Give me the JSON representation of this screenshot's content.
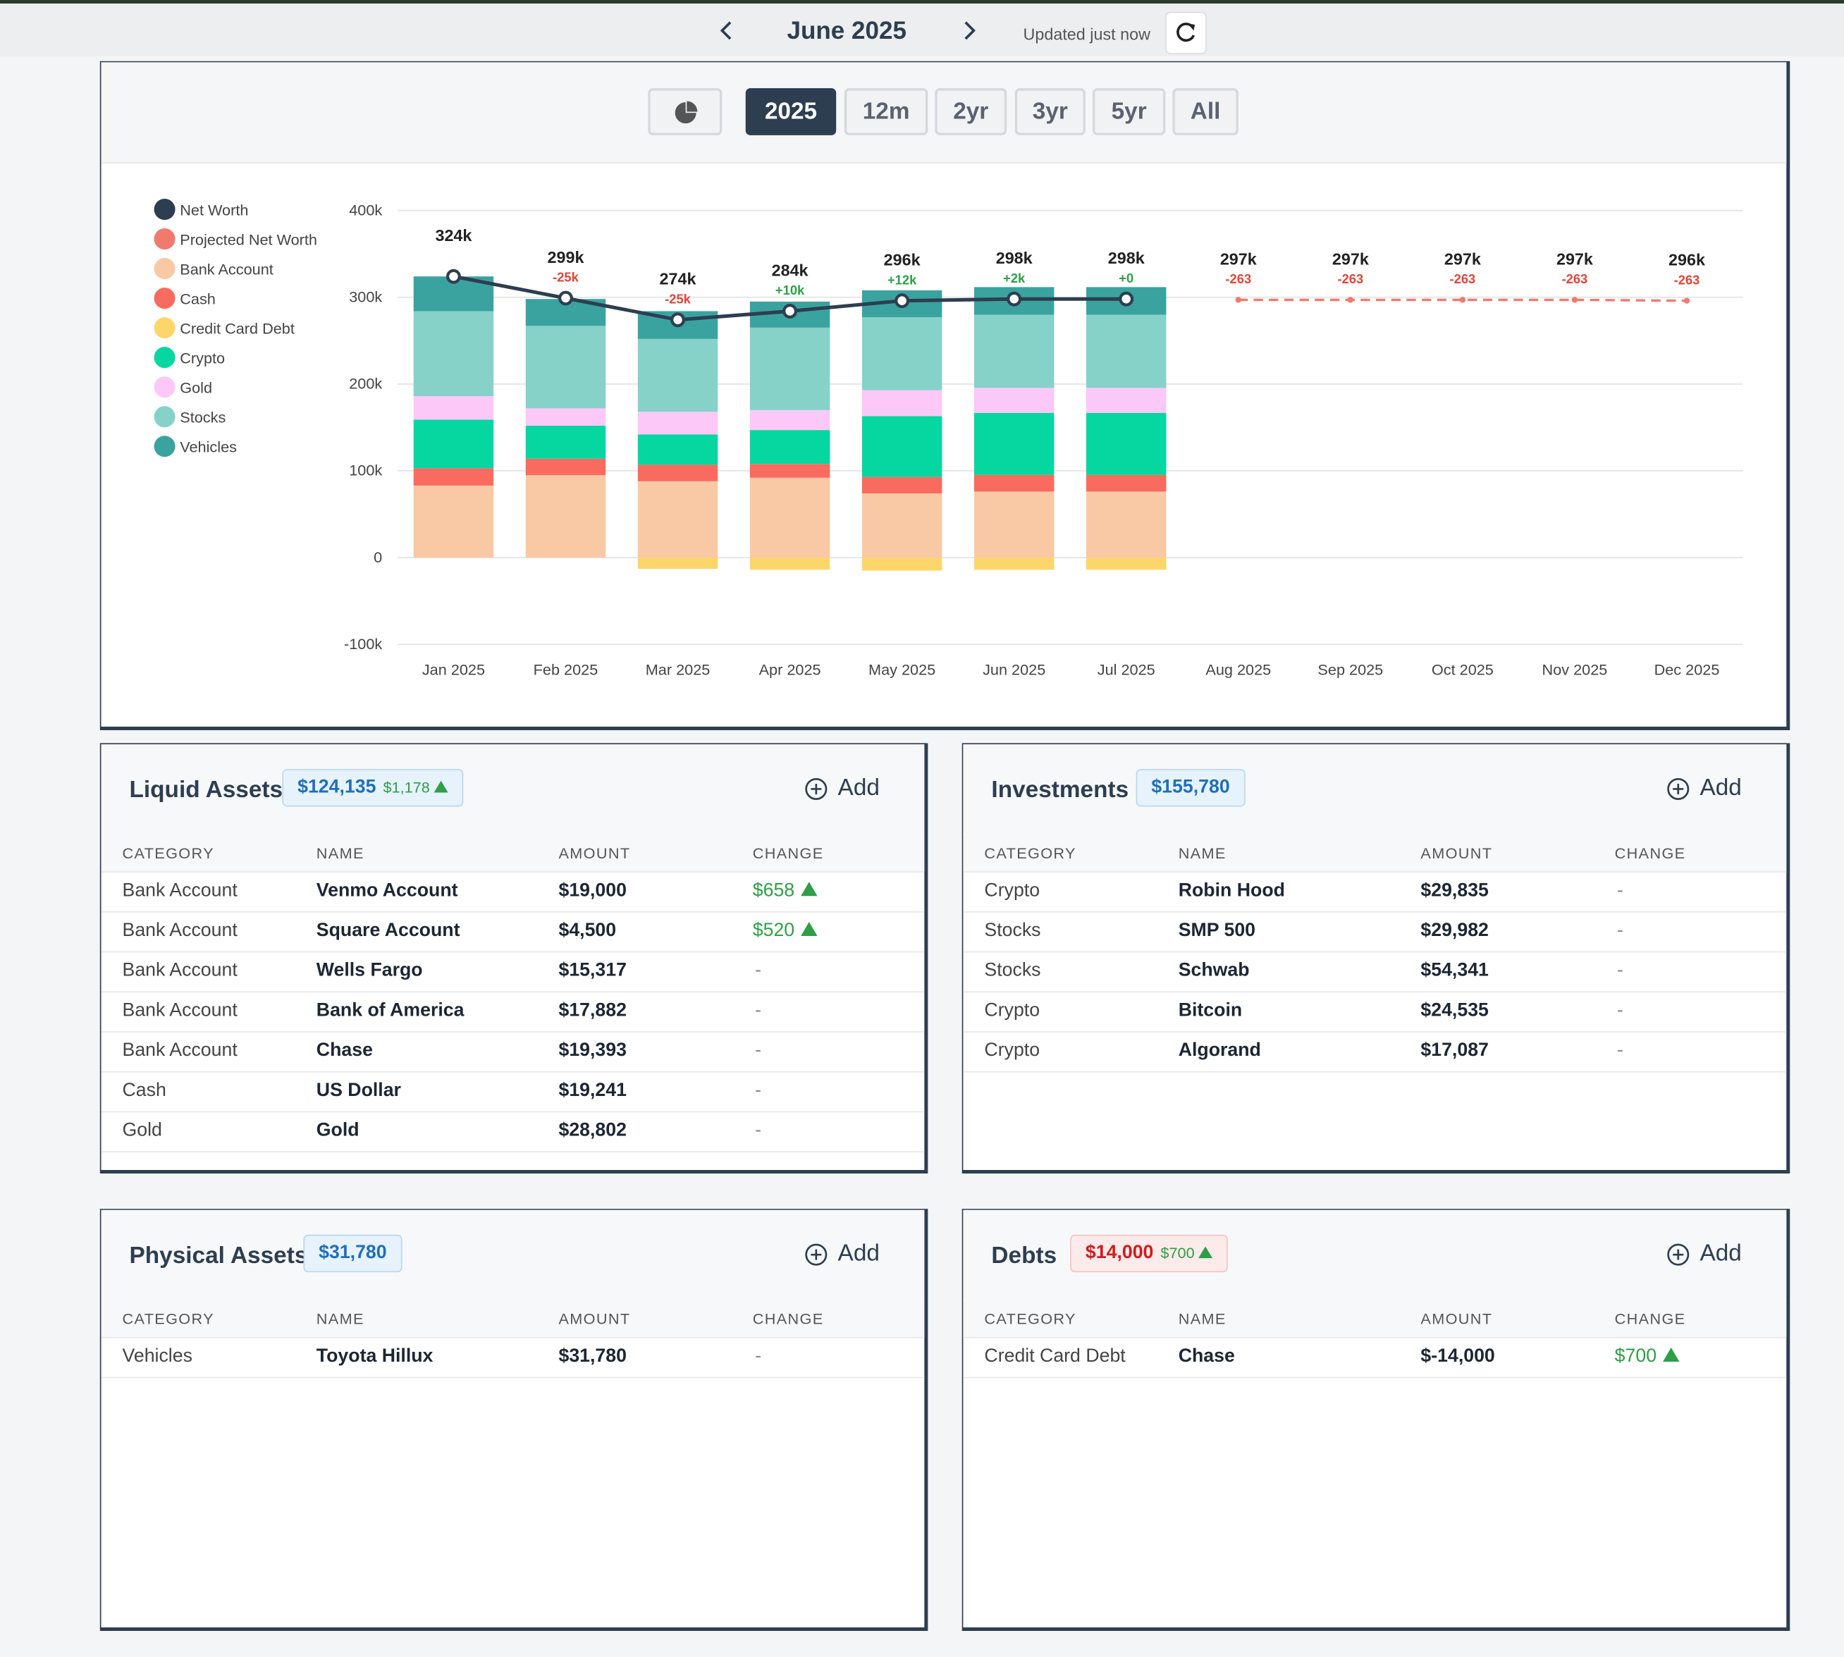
{
  "header": {
    "month": "June 2025",
    "updated": "Updated just now"
  },
  "ranges": [
    "2025",
    "12m",
    "2yr",
    "3yr",
    "5yr",
    "All"
  ],
  "chart_data": {
    "type": "bar",
    "categories": [
      "Jan 2025",
      "Feb 2025",
      "Mar 2025",
      "Apr 2025",
      "May 2025",
      "Jun 2025",
      "Jul 2025",
      "Aug 2025",
      "Sep 2025",
      "Oct 2025",
      "Nov 2025",
      "Dec 2025"
    ],
    "ylim": [
      -100000,
      400000
    ],
    "yticks": [
      {
        "value": -100000,
        "label": "-100k"
      },
      0,
      {
        "value": 100000,
        "label": "100k"
      },
      {
        "value": 200000,
        "label": "200k"
      },
      {
        "value": 300000,
        "label": "300k"
      },
      {
        "value": 400000,
        "label": "400k"
      }
    ],
    "grid": true,
    "lines": [
      {
        "name": "Net Worth",
        "color": "#2d3e50",
        "dashed": false,
        "values": [
          324000,
          299000,
          274000,
          284000,
          296000,
          298000,
          298000,
          null,
          null,
          null,
          null,
          null
        ],
        "value_labels": [
          "324k",
          "299k",
          "274k",
          "284k",
          "296k",
          "298k",
          "298k",
          null,
          null,
          null,
          null,
          null
        ]
      },
      {
        "name": "Projected Net Worth",
        "color": "#f07a6e",
        "dashed": true,
        "values": [
          null,
          null,
          null,
          null,
          null,
          null,
          null,
          297000,
          297000,
          297000,
          297000,
          296000
        ],
        "value_labels": [
          null,
          null,
          null,
          null,
          null,
          null,
          null,
          "297k",
          "297k",
          "297k",
          "297k",
          "296k"
        ]
      }
    ],
    "changes": [
      null,
      -25000,
      -25000,
      10000,
      12000,
      2000,
      0,
      -263,
      -263,
      -263,
      -263,
      -263
    ],
    "change_labels": [
      null,
      "-25k",
      "-25k",
      "+10k",
      "+12k",
      "+2k",
      "+0",
      "-263",
      "-263",
      "-263",
      "-263",
      "-263"
    ],
    "series": [
      {
        "name": "Bank Account",
        "color": "#f8c9a4",
        "values": [
          83000,
          95000,
          88000,
          92000,
          74000,
          76092,
          76092,
          null,
          null,
          null,
          null,
          null
        ]
      },
      {
        "name": "Cash",
        "color": "#f96b5e",
        "values": [
          20000,
          19000,
          19000,
          16000,
          19000,
          19241,
          19241,
          null,
          null,
          null,
          null,
          null
        ]
      },
      {
        "name": "Credit Card Debt",
        "color": "#fdd66b",
        "values": [
          0,
          0,
          -13000,
          -14000,
          -15000,
          -14000,
          -14000,
          null,
          null,
          null,
          null,
          null
        ]
      },
      {
        "name": "Crypto",
        "color": "#06d6a0",
        "values": [
          56000,
          38000,
          35000,
          39000,
          70000,
          71457,
          71457,
          null,
          null,
          null,
          null,
          null
        ]
      },
      {
        "name": "Gold",
        "color": "#fcc8f7",
        "values": [
          27000,
          20000,
          26000,
          23000,
          30000,
          28802,
          28802,
          null,
          null,
          null,
          null,
          null
        ]
      },
      {
        "name": "Stocks",
        "color": "#86d1c8",
        "values": [
          98000,
          95000,
          84000,
          95000,
          84000,
          84323,
          84323,
          null,
          null,
          null,
          null,
          null
        ]
      },
      {
        "name": "Vehicles",
        "color": "#3aa3a0",
        "values": [
          40000,
          31000,
          32000,
          30000,
          31000,
          31780,
          31780,
          null,
          null,
          null,
          null,
          null
        ]
      }
    ]
  },
  "columns": [
    "CATEGORY",
    "NAME",
    "AMOUNT",
    "CHANGE"
  ],
  "panels": [
    {
      "title": "Liquid Assets",
      "total": "$124,135",
      "total_change": "$1,178",
      "add": "Add",
      "rows": [
        [
          "Bank Account",
          "Venmo Account",
          "$19,000",
          "$658"
        ],
        [
          "Bank Account",
          "Square Account",
          "$4,500",
          "$520"
        ],
        [
          "Bank Account",
          "Wells Fargo",
          "$15,317",
          "-"
        ],
        [
          "Bank Account",
          "Bank of America",
          "$17,882",
          "-"
        ],
        [
          "Bank Account",
          "Chase",
          "$19,393",
          "-"
        ],
        [
          "Cash",
          "US Dollar",
          "$19,241",
          "-"
        ],
        [
          "Gold",
          "Gold",
          "$28,802",
          "-"
        ]
      ]
    },
    {
      "title": "Investments",
      "total": "$155,780",
      "add": "Add",
      "rows": [
        [
          "Crypto",
          "Robin Hood",
          "$29,835",
          "-"
        ],
        [
          "Stocks",
          "SMP 500",
          "$29,982",
          "-"
        ],
        [
          "Stocks",
          "Schwab",
          "$54,341",
          "-"
        ],
        [
          "Crypto",
          "Bitcoin",
          "$24,535",
          "-"
        ],
        [
          "Crypto",
          "Algorand",
          "$17,087",
          "-"
        ]
      ]
    },
    {
      "title": "Physical Assets",
      "total": "$31,780",
      "add": "Add",
      "rows": [
        [
          "Vehicles",
          "Toyota Hillux",
          "$31,780",
          "-"
        ]
      ]
    },
    {
      "title": "Debts",
      "total": "$14,000",
      "total_change": "$700",
      "debt": true,
      "add": "Add",
      "rows": [
        [
          "Credit Card Debt",
          "Chase",
          "$-14,000",
          "$700"
        ]
      ]
    }
  ]
}
